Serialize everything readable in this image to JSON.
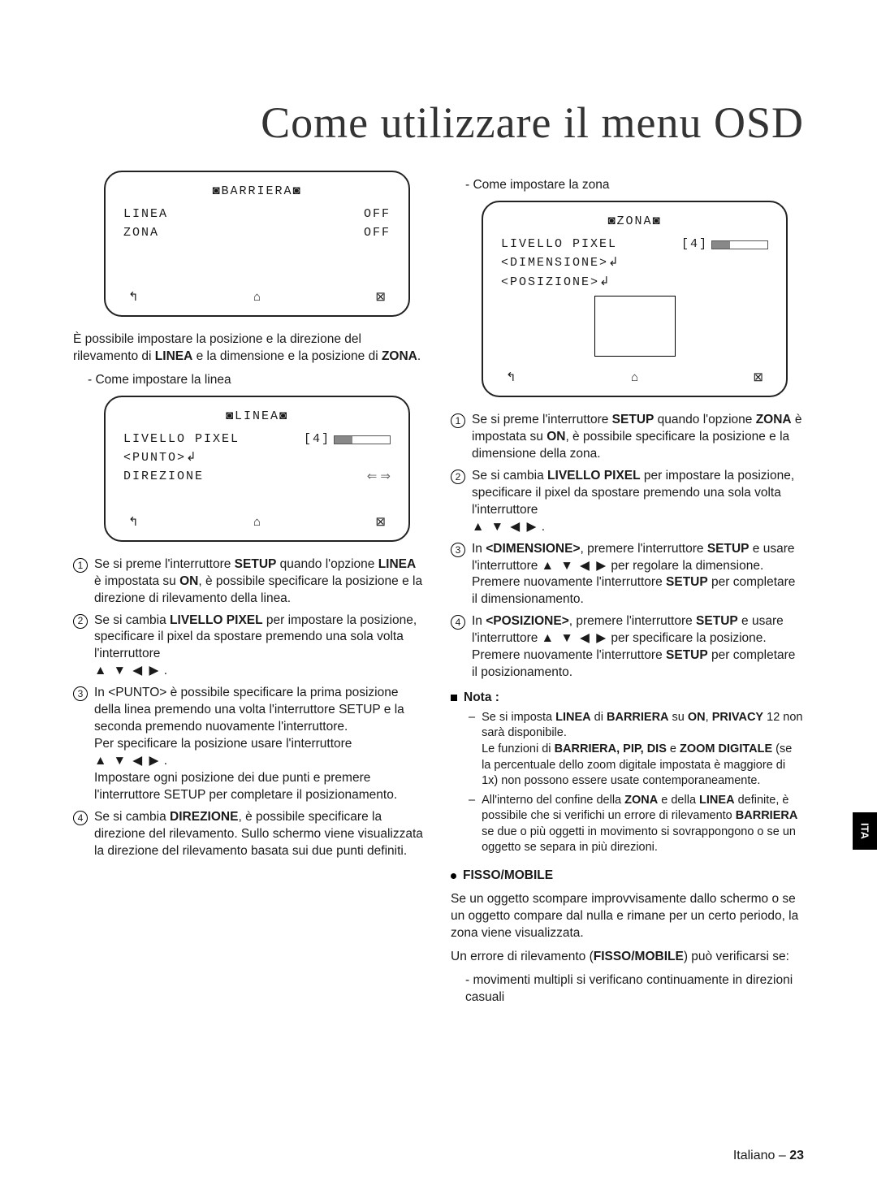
{
  "title": "Come utilizzare il menu OSD",
  "side_tab": "ITA",
  "footer_lang": "Italiano",
  "footer_sep": " – ",
  "footer_page": "23",
  "arrows_inline": "▲ ▼ ◀ ▶",
  "osd_nav": {
    "back": "↰",
    "home": "⌂",
    "close": "⊠"
  },
  "barriera": {
    "title": "◙BARRIERA◙",
    "rows": [
      {
        "label": "LINEA",
        "value": "OFF"
      },
      {
        "label": "ZONA",
        "value": "OFF"
      }
    ]
  },
  "left_intro": "È possibile impostare la posizione e la direzione del rilevamento di ",
  "left_intro_b1": "LINEA",
  "left_intro_mid": " e la dimensione e la posizione di ",
  "left_intro_b2": "ZONA",
  "left_intro_end": ".",
  "left_sub": "- Come impostare la linea",
  "linea_box": {
    "title": "◙LINEA◙",
    "pixel_label": "LIVELLO PIXEL",
    "pixel_value": "[4]",
    "punto": "<PUNTO>",
    "direzione": "DIREZIONE",
    "lr": "⇐ ⇒"
  },
  "left_list": {
    "n1a": "Se si preme l'interruttore ",
    "n1b": "SETUP",
    "n1c": " quando l'opzione ",
    "n1d": "LINEA",
    "n1e": " è impostata su ",
    "n1f": "ON",
    "n1g": ", è possibile specificare la posizione e la direzione di rilevamento della linea.",
    "n2a": "Se si cambia ",
    "n2b": "LIVELLO PIXEL",
    "n2c": " per impostare la posizione, specificare il pixel da spostare premendo una sola volta l'interruttore",
    "n3": "In <PUNTO> è possibile specificare la prima posizione della linea premendo una volta l'interruttore SETUP e la seconda premendo nuovamente l'interruttore.",
    "n3b": "Per specificare la posizione usare l'interruttore",
    "n3c": "Impostare ogni posizione dei due punti e premere l'interruttore SETUP per completare il posizionamento.",
    "n4a": "Se si cambia ",
    "n4b": "DIREZIONE",
    "n4c": ", è possibile specificare la direzione del rilevamento. Sullo schermo viene visualizzata la direzione del rilevamento basata sui due punti definiti."
  },
  "right_sub": "- Come impostare la zona",
  "zona_box": {
    "title": "◙ZONA◙",
    "pixel_label": "LIVELLO PIXEL",
    "pixel_value": "[4]",
    "dimensione": "<DIMENSIONE>",
    "posizione": "<POSIZIONE>"
  },
  "right_list": {
    "n1a": "Se si preme l'interruttore ",
    "n1b": "SETUP",
    "n1c": " quando l'opzione ",
    "n1d": "ZONA",
    "n1e": " è impostata su ",
    "n1f": "ON",
    "n1g": ", è possibile specificare la posizione e la dimensione della zona.",
    "n2a": "Se si cambia ",
    "n2b": "LIVELLO PIXEL",
    "n2c": " per impostare la posizione, specificare il pixel da spostare premendo una sola volta l'interruttore",
    "n3a": "In ",
    "n3b": "<DIMENSIONE>",
    "n3c": ", premere l'interruttore ",
    "n3d": "SETUP",
    "n3e": " e usare l'interruttore ",
    "n3f": " per regolare la dimensione.",
    "n3g": "Premere nuovamente l'interruttore ",
    "n3h": "SETUP",
    "n3i": " per completare il dimensionamento.",
    "n4a": "In ",
    "n4b": "<POSIZIONE>",
    "n4c": ", premere l'interruttore ",
    "n4d": "SETUP",
    "n4e": " e usare l'interruttore ",
    "n4f": " per specificare la posizione.",
    "n4g": "Premere nuovamente l'interruttore ",
    "n4h": "SETUP",
    "n4i": " per completare il posizionamento."
  },
  "nota": {
    "head": "Nota :",
    "i1a": "Se si imposta ",
    "i1b": "LINEA",
    "i1c": " di ",
    "i1d": "BARRIERA",
    "i1e": " su ",
    "i1f": "ON",
    "i1g": ", ",
    "i1h": "PRIVACY",
    "i1i": " 12 non sarà disponibile.",
    "i1j": "Le funzioni di ",
    "i1k": "BARRIERA, PIP, DIS",
    "i1l": " e ",
    "i1m": "ZOOM DIGITALE",
    "i1n": " (se la percentuale dello zoom digitale impostata è maggiore di 1x) non possono essere usate contemporaneamente.",
    "i2a": "All'interno del confine della ",
    "i2b": "ZONA",
    "i2c": " e della ",
    "i2d": "LINEA",
    "i2e": " definite, è possibile che si verifichi un errore di rilevamento ",
    "i2f": "BARRIERA",
    "i2g": " se due o più oggetti in movimento si sovrappongono o se un oggetto se separa in più direzioni."
  },
  "fisso": {
    "head": "FISSO/MOBILE",
    "p1": "Se un oggetto scompare improvvisamente dallo schermo o se un oggetto compare dal nulla e rimane per un certo periodo, la zona viene visualizzata.",
    "p2a": "Un errore di rilevamento (",
    "p2b": "FISSO/MOBILE",
    "p2c": ") può verificarsi se:",
    "b1": "- movimenti multipli si verificano continuamente in direzioni casuali"
  }
}
